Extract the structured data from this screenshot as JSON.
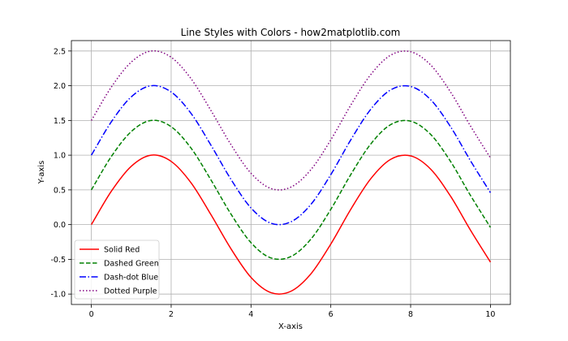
{
  "chart_data": {
    "type": "line",
    "title": "Line Styles with Colors - how2matplotlib.com",
    "xlabel": "X-axis",
    "ylabel": "Y-axis",
    "xlim": [
      -0.5,
      10.5
    ],
    "ylim": [
      -1.15,
      2.65
    ],
    "xticks": [
      0,
      2,
      4,
      6,
      8,
      10
    ],
    "xtick_labels": [
      "0",
      "2",
      "4",
      "6",
      "8",
      "10"
    ],
    "yticks": [
      -1.0,
      -0.5,
      0.0,
      0.5,
      1.0,
      1.5,
      2.0,
      2.5
    ],
    "ytick_labels": [
      "-1.0",
      "-0.5",
      "0.0",
      "0.5",
      "1.0",
      "1.5",
      "2.0",
      "2.5"
    ],
    "grid": true,
    "legend_position": "bottom-left",
    "x": [
      0,
      0.5,
      1,
      1.5,
      2,
      2.5,
      3,
      3.5,
      4,
      4.5,
      5,
      5.5,
      6,
      6.5,
      7,
      7.5,
      8,
      8.5,
      9,
      9.5,
      10
    ],
    "series": [
      {
        "name": "Solid Red",
        "color": "#ff0000",
        "style": "solid",
        "values": [
          0.0,
          0.48,
          0.84,
          1.0,
          0.91,
          0.6,
          0.14,
          -0.35,
          -0.76,
          -0.98,
          -0.96,
          -0.71,
          -0.28,
          0.22,
          0.66,
          0.94,
          0.99,
          0.8,
          0.41,
          -0.08,
          -0.54
        ]
      },
      {
        "name": "Dashed Green",
        "color": "#008000",
        "style": "dashed",
        "values": [
          0.5,
          0.98,
          1.34,
          1.5,
          1.41,
          1.1,
          0.64,
          0.15,
          -0.26,
          -0.48,
          -0.46,
          -0.21,
          0.22,
          0.72,
          1.16,
          1.44,
          1.49,
          1.3,
          0.91,
          0.42,
          -0.04
        ]
      },
      {
        "name": "Dash-dot Blue",
        "color": "#0000ff",
        "style": "dashdot",
        "values": [
          1.0,
          1.48,
          1.84,
          2.0,
          1.91,
          1.6,
          1.14,
          0.65,
          0.24,
          0.02,
          0.04,
          0.29,
          0.72,
          1.22,
          1.66,
          1.94,
          1.99,
          1.8,
          1.41,
          0.92,
          0.46
        ]
      },
      {
        "name": "Dotted Purple",
        "color": "#800080",
        "style": "dotted",
        "values": [
          1.5,
          1.98,
          2.34,
          2.5,
          2.41,
          2.1,
          1.64,
          1.15,
          0.74,
          0.52,
          0.54,
          0.79,
          1.22,
          1.72,
          2.16,
          2.44,
          2.49,
          2.3,
          1.91,
          1.42,
          0.96
        ]
      }
    ]
  }
}
